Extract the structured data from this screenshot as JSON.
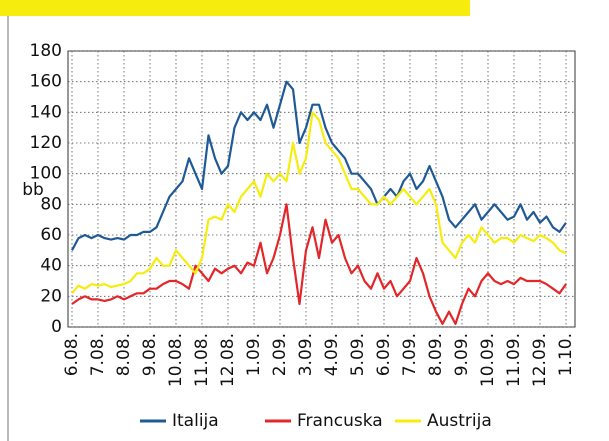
{
  "chart_data": {
    "type": "line",
    "y_label": "bb",
    "categories": [
      "6.08.",
      null,
      null,
      null,
      "7.08.",
      null,
      null,
      null,
      "8.08.",
      null,
      null,
      null,
      "9.08.",
      null,
      null,
      null,
      "10.08.",
      null,
      null,
      null,
      "11.08.",
      null,
      null,
      null,
      "12.08.",
      null,
      null,
      null,
      "1.09.",
      null,
      null,
      null,
      "2.09.",
      null,
      null,
      null,
      "3.09.",
      null,
      null,
      null,
      "4.09.",
      null,
      null,
      null,
      "5.09.",
      null,
      null,
      null,
      "6.09.",
      null,
      null,
      null,
      "7.09.",
      null,
      null,
      null,
      "8.09.",
      null,
      null,
      null,
      "9.09.",
      null,
      null,
      null,
      "10.09.",
      null,
      null,
      null,
      "11.09.",
      null,
      null,
      null,
      "12.09.",
      null,
      null,
      null,
      "1.10."
    ],
    "series": [
      {
        "name": "Italija",
        "color": "#1f5a96",
        "values": [
          50,
          58,
          60,
          58,
          60,
          58,
          57,
          58,
          57,
          60,
          60,
          62,
          62,
          65,
          75,
          85,
          90,
          95,
          110,
          100,
          90,
          125,
          110,
          100,
          105,
          130,
          140,
          135,
          140,
          135,
          145,
          130,
          145,
          160,
          155,
          120,
          130,
          145,
          145,
          130,
          120,
          115,
          110,
          100,
          100,
          95,
          90,
          80,
          85,
          90,
          85,
          95,
          100,
          90,
          95,
          105,
          95,
          85,
          70,
          65,
          70,
          75,
          80,
          70,
          75,
          80,
          75,
          70,
          72,
          80,
          70,
          75,
          68,
          72,
          65,
          62,
          68
        ]
      },
      {
        "name": "Francuska",
        "color": "#e3262a",
        "values": [
          15,
          18,
          20,
          18,
          18,
          17,
          18,
          20,
          18,
          20,
          22,
          22,
          25,
          25,
          28,
          30,
          30,
          28,
          25,
          40,
          35,
          30,
          38,
          35,
          38,
          40,
          35,
          42,
          40,
          55,
          35,
          45,
          60,
          80,
          45,
          15,
          50,
          65,
          45,
          70,
          55,
          60,
          45,
          35,
          40,
          30,
          25,
          35,
          25,
          30,
          20,
          25,
          30,
          45,
          35,
          20,
          10,
          2,
          10,
          2,
          15,
          25,
          20,
          30,
          35,
          30,
          28,
          30,
          28,
          32,
          30,
          30,
          30,
          28,
          25,
          22,
          28
        ]
      },
      {
        "name": "Austrija",
        "color": "#f6ec0e",
        "values": [
          22,
          27,
          25,
          28,
          27,
          28,
          26,
          27,
          28,
          30,
          35,
          35,
          38,
          45,
          40,
          40,
          50,
          45,
          40,
          35,
          45,
          70,
          72,
          70,
          80,
          75,
          85,
          90,
          95,
          85,
          100,
          95,
          100,
          95,
          120,
          100,
          110,
          140,
          135,
          120,
          115,
          110,
          100,
          90,
          90,
          85,
          80,
          80,
          85,
          80,
          85,
          90,
          85,
          80,
          85,
          90,
          80,
          55,
          50,
          45,
          55,
          60,
          55,
          65,
          60,
          55,
          58,
          58,
          55,
          60,
          58,
          56,
          60,
          58,
          55,
          50,
          48
        ]
      }
    ],
    "ylim": [
      0,
      180
    ],
    "yticks": [
      0,
      20,
      40,
      60,
      80,
      100,
      120,
      140,
      160,
      180
    ],
    "grid": true
  }
}
